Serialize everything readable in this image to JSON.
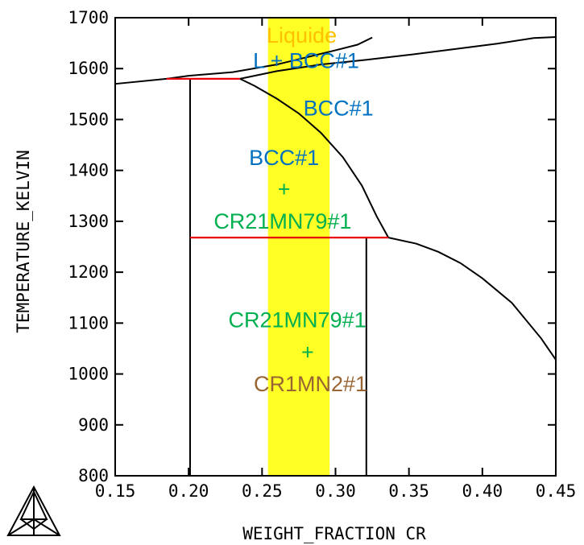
{
  "chart_data": {
    "type": "line",
    "xlabel": "WEIGHT_FRACTION CR",
    "ylabel": "TEMPERATURE_KELVIN",
    "xlim": [
      0.15,
      0.45
    ],
    "ylim": [
      800,
      1700
    ],
    "x_ticks": [
      "0.15",
      "0.20",
      "0.25",
      "0.30",
      "0.35",
      "0.40",
      "0.45"
    ],
    "y_ticks": [
      "800",
      "900",
      "1000",
      "1100",
      "1200",
      "1300",
      "1400",
      "1500",
      "1600",
      "1700"
    ],
    "grid": false,
    "highlight_band": {
      "x": [
        0.254,
        0.296
      ],
      "color": "#ffff00"
    },
    "series": [
      {
        "color": "#000000",
        "points": [
          [
            0.15,
            1570
          ],
          [
            0.185,
            1580
          ],
          [
            0.2,
            1586
          ],
          [
            0.23,
            1593
          ],
          [
            0.26,
            1608
          ],
          [
            0.28,
            1622
          ],
          [
            0.3,
            1636
          ],
          [
            0.315,
            1647
          ],
          [
            0.325,
            1661
          ]
        ]
      },
      {
        "color": "#000000",
        "points": [
          [
            0.235,
            1580
          ],
          [
            0.26,
            1595
          ],
          [
            0.29,
            1608
          ],
          [
            0.32,
            1617
          ],
          [
            0.35,
            1627
          ],
          [
            0.38,
            1638
          ],
          [
            0.41,
            1649
          ],
          [
            0.435,
            1660
          ],
          [
            0.45,
            1662
          ]
        ]
      },
      {
        "color": "#000000",
        "points": [
          [
            0.235,
            1580
          ],
          [
            0.245,
            1566
          ],
          [
            0.26,
            1541
          ],
          [
            0.275,
            1512
          ],
          [
            0.29,
            1474
          ],
          [
            0.305,
            1426
          ],
          [
            0.318,
            1370
          ],
          [
            0.328,
            1310
          ],
          [
            0.336,
            1268
          ]
        ]
      },
      {
        "color": "#000000",
        "points": [
          [
            0.336,
            1268
          ],
          [
            0.355,
            1256
          ],
          [
            0.37,
            1240
          ],
          [
            0.385,
            1218
          ],
          [
            0.4,
            1188
          ],
          [
            0.42,
            1140
          ],
          [
            0.44,
            1070
          ],
          [
            0.45,
            1028
          ]
        ]
      },
      {
        "color": "#000000",
        "points": [
          [
            0.201,
            1580
          ],
          [
            0.201,
            800
          ]
        ]
      },
      {
        "color": "#000000",
        "points": [
          [
            0.321,
            1268
          ],
          [
            0.321,
            800
          ]
        ]
      },
      {
        "color": "#e8000b",
        "points": [
          [
            0.185,
            1580
          ],
          [
            0.235,
            1580
          ]
        ]
      },
      {
        "color": "#e8000b",
        "points": [
          [
            0.201,
            1268
          ],
          [
            0.336,
            1268
          ]
        ]
      }
    ],
    "annotations": [
      {
        "text": "Liquide",
        "x": 0.277,
        "y": 1665,
        "color": "#ffc000"
      },
      {
        "text": "L + BCC#1",
        "x": 0.28,
        "y": 1615,
        "color": "#0070c0"
      },
      {
        "text": "BCC#1",
        "x": 0.302,
        "y": 1522,
        "color": "#0070c0"
      },
      {
        "text": "BCC#1",
        "x": 0.265,
        "y": 1425,
        "color": "#0070c0"
      },
      {
        "text": "+",
        "x": 0.265,
        "y": 1363,
        "color": "#00b050"
      },
      {
        "text": "CR21MN79#1",
        "x": 0.264,
        "y": 1300,
        "color": "#00b050"
      },
      {
        "text": "CR21MN79#1",
        "x": 0.274,
        "y": 1106,
        "color": "#00b050"
      },
      {
        "text": "+",
        "x": 0.281,
        "y": 1043,
        "color": "#00b050"
      },
      {
        "text": "CR1MN2#1",
        "x": 0.283,
        "y": 980,
        "color": "#996633"
      }
    ]
  }
}
